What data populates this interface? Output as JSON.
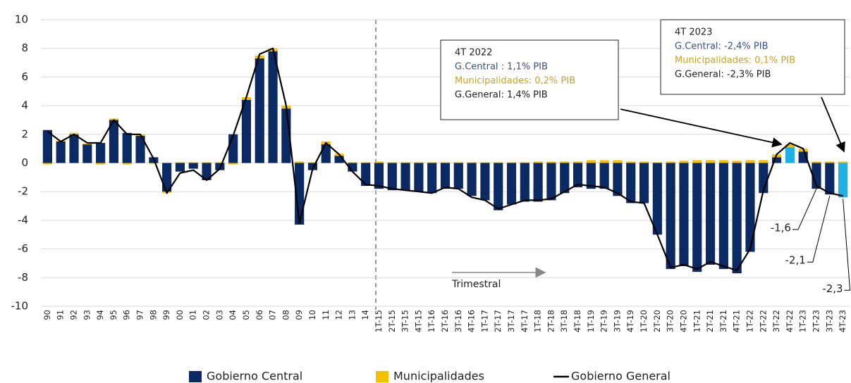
{
  "chart_data": {
    "type": "bar_line",
    "categories": [
      "90",
      "91",
      "92",
      "93",
      "94",
      "95",
      "96",
      "97",
      "98",
      "99",
      "00",
      "01",
      "02",
      "03",
      "04",
      "05",
      "06",
      "07",
      "08",
      "09",
      "10",
      "11",
      "12",
      "13",
      "14",
      "1T-15",
      "2T-15",
      "3T-15",
      "4T-15",
      "1T-16",
      "2T-16",
      "3T-16",
      "4T-16",
      "1T-17",
      "2T-17",
      "3T-17",
      "4T-17",
      "1T-18",
      "2T-18",
      "3T-18",
      "4T-18",
      "1T-19",
      "2T-19",
      "3T-19",
      "4T-19",
      "1T-20",
      "2T-20",
      "3T-20",
      "4T-20",
      "1T-21",
      "2T-21",
      "3T-21",
      "4T-21",
      "1T-22",
      "2T-22",
      "3T-22",
      "4T-22",
      "1T-23",
      "2T-23",
      "3T-23",
      "4T-23"
    ],
    "ylim": [
      -10,
      10
    ],
    "yticks": [
      -10,
      -8,
      -6,
      -4,
      -2,
      0,
      2,
      4,
      6,
      8,
      10
    ],
    "highlight_categories": [
      "4T-22",
      "4T-23"
    ],
    "highlight_color": "#1fb0e8",
    "series": [
      {
        "name": "Gobierno Central",
        "kind": "bar",
        "color": "#0b2a63",
        "values": [
          2.3,
          1.5,
          2.0,
          1.3,
          1.4,
          3.0,
          2.1,
          1.9,
          0.4,
          -2.0,
          -0.6,
          -0.4,
          -1.2,
          -0.5,
          2.0,
          4.4,
          7.3,
          7.8,
          3.8,
          -4.3,
          -0.5,
          1.3,
          0.5,
          -0.6,
          -1.6,
          -1.8,
          -1.9,
          -1.9,
          -2.0,
          -2.1,
          -1.8,
          -1.8,
          -2.3,
          -2.6,
          -3.3,
          -2.9,
          -2.7,
          -2.7,
          -2.6,
          -2.1,
          -1.7,
          -1.8,
          -1.8,
          -2.3,
          -2.8,
          -2.8,
          -5.0,
          -7.4,
          -7.2,
          -7.6,
          -7.1,
          -7.4,
          -7.7,
          -6.2,
          -2.1,
          0.4,
          1.1,
          0.8,
          -1.8,
          -2.2,
          -2.4
        ]
      },
      {
        "name": "Municipalidades",
        "kind": "bar",
        "color": "#f5c000",
        "values": [
          -0.1,
          0.05,
          0.1,
          0.05,
          -0.1,
          0.1,
          -0.1,
          0.1,
          -0.05,
          -0.1,
          0.05,
          0.05,
          0.05,
          0.05,
          -0.1,
          0.2,
          0.2,
          0.2,
          0.2,
          0.1,
          0.05,
          0.2,
          0.15,
          0.05,
          0.05,
          0.1,
          0.05,
          0.05,
          0.05,
          0.05,
          0.05,
          0.05,
          0.05,
          0.05,
          0.05,
          0.05,
          0.05,
          0.1,
          0.1,
          0.1,
          0.1,
          0.2,
          0.2,
          0.2,
          0.1,
          0.1,
          0.05,
          0.1,
          0.15,
          0.2,
          0.2,
          0.2,
          0.15,
          0.2,
          0.2,
          0.2,
          0.2,
          0.2,
          0.1,
          0.1,
          0.1
        ]
      },
      {
        "name": "Gobierno  General",
        "kind": "line",
        "color": "#000000",
        "values": [
          2.2,
          1.5,
          2.0,
          1.4,
          1.4,
          3.0,
          2.0,
          2.0,
          0.3,
          -2.1,
          -0.7,
          -0.5,
          -1.2,
          -0.4,
          1.9,
          4.6,
          7.6,
          8.0,
          4.0,
          -4.2,
          -0.4,
          1.4,
          0.6,
          -0.6,
          -1.5,
          -1.6,
          -1.8,
          -1.9,
          -2.0,
          -2.1,
          -1.7,
          -1.8,
          -2.4,
          -2.6,
          -3.2,
          -2.9,
          -2.6,
          -2.6,
          -2.5,
          -2.0,
          -1.5,
          -1.6,
          -1.7,
          -2.1,
          -2.7,
          -2.8,
          -5.0,
          -7.3,
          -7.1,
          -7.4,
          -6.9,
          -7.2,
          -7.5,
          -6.0,
          -1.9,
          0.6,
          1.4,
          1.0,
          -1.6,
          -2.1,
          -2.3
        ],
        "value_labels": [
          null,
          null,
          null,
          null,
          null,
          null,
          null,
          null,
          null,
          null,
          null,
          null,
          null,
          null,
          null,
          null,
          null,
          null,
          null,
          null,
          null,
          null,
          null,
          null,
          null,
          null,
          null,
          null,
          null,
          null,
          null,
          null,
          null,
          null,
          null,
          null,
          null,
          null,
          null,
          null,
          null,
          null,
          null,
          null,
          null,
          null,
          null,
          null,
          null,
          null,
          null,
          null,
          null,
          null,
          null,
          null,
          null,
          null,
          "-1,6",
          "-2,1",
          "-2,3"
        ]
      }
    ],
    "annotations": [
      {
        "lines": [
          {
            "text": "4T 2022",
            "color": "#222222"
          },
          {
            "text": "G.Central : 1,1% PIB",
            "color": "#3a4f8a"
          },
          {
            "text": "Municipalidades:  0,2%  PIB",
            "color": "#c9a227"
          },
          {
            "text": "G.General: 1,4%  PIB",
            "color": "#222222"
          }
        ]
      },
      {
        "lines": [
          {
            "text": "4T 2023",
            "color": "#222222"
          },
          {
            "text": "G.Central: -2,4% PIB",
            "color": "#3a4f8a"
          },
          {
            "text": "Municipalidades:  0,1%  PIB",
            "color": "#c9a227"
          },
          {
            "text": "G.General: -2,3% PIB",
            "color": "#222222"
          }
        ]
      }
    ],
    "period_label": "Trimestral",
    "grid": true
  }
}
